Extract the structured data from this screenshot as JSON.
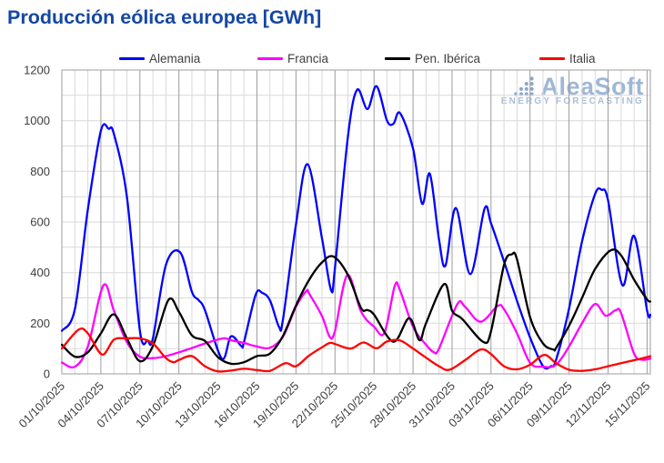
{
  "title": "Producción eólica europea [GWh]",
  "watermark": {
    "brand": "AleaSoft",
    "tagline": "ENERGY FORECASTING"
  },
  "colors": {
    "title": "#1547A4",
    "grid_minor": "#D9D9D9",
    "grid_major": "#9C9C9C",
    "border": "#ADADAD",
    "axis_text": "#3D3D3D",
    "watermark": "#9FB7D7"
  },
  "chart_data": {
    "type": "line",
    "title": "Producción eólica europea [GWh]",
    "xlabel": "",
    "ylabel": "",
    "ylim": [
      0,
      1200
    ],
    "y_ticks": [
      0,
      200,
      400,
      600,
      800,
      1000,
      1200
    ],
    "y_gridline_step": 100,
    "grid": true,
    "legend_position": "top",
    "x_tick_interval_days": 3,
    "x_total_days": 45.25,
    "x_tick_labels": [
      "01/10/2025",
      "04/10/2025",
      "07/10/2025",
      "10/10/2025",
      "13/10/2025",
      "16/10/2025",
      "19/10/2025",
      "22/10/2025",
      "25/10/2025",
      "28/10/2025",
      "31/10/2025",
      "03/11/2025",
      "06/11/2025",
      "09/11/2025",
      "12/11/2025",
      "15/11/2025"
    ],
    "series": [
      {
        "name": "Alemania",
        "color": "#0000FF",
        "x": [
          0,
          1,
          2,
          3,
          3.6,
          4,
          5,
          6,
          6.6,
          7,
          8,
          9.1,
          10,
          10.5,
          11,
          12.3,
          13,
          13.8,
          14,
          14.9,
          15.4,
          16,
          16.7,
          17,
          18,
          18.9,
          20,
          20.7,
          21,
          22,
          22.7,
          23.5,
          24.2,
          25,
          25.5,
          26,
          27,
          27.7,
          28.3,
          29,
          29.5,
          30.3,
          31.4,
          32.5,
          33,
          34,
          35,
          36,
          37,
          37.6,
          38,
          39,
          40,
          41,
          41.5,
          42,
          43.1,
          44,
          45,
          45.25
        ],
        "values": [
          170,
          255,
          650,
          960,
          968,
          948,
          700,
          170,
          132,
          140,
          430,
          480,
          324,
          292,
          252,
          60,
          148,
          110,
          125,
          312,
          320,
          290,
          185,
          215,
          590,
          828,
          535,
          330,
          420,
          940,
          1122,
          1046,
          1136,
          1000,
          988,
          1030,
          890,
          672,
          790,
          530,
          428,
          655,
          394,
          652,
          595,
          444,
          288,
          144,
          30,
          30,
          55,
          258,
          523,
          710,
          727,
          685,
          350,
          545,
          250,
          233
        ]
      },
      {
        "name": "Francia",
        "color": "#FF00FF",
        "x": [
          0,
          1,
          2,
          3.2,
          4,
          5,
          6,
          7,
          8,
          9,
          10,
          11,
          12.4,
          13,
          14,
          15,
          16,
          17,
          18,
          18.8,
          19,
          20,
          20.6,
          21,
          21.95,
          23,
          24,
          24.8,
          25.6,
          26,
          27,
          28,
          28.6,
          29,
          30.4,
          31,
          32.2,
          33.5,
          34,
          35,
          36,
          37,
          38,
          39,
          40,
          41,
          41.8,
          42.6,
          43,
          44,
          44.6,
          45.25
        ],
        "values": [
          45,
          28,
          108,
          350,
          250,
          125,
          68,
          62,
          70,
          85,
          102,
          120,
          140,
          133,
          122,
          108,
          103,
          147,
          265,
          327,
          318,
          228,
          146,
          170,
          390,
          246,
          186,
          162,
          348,
          330,
          186,
          115,
          86,
          100,
          275,
          265,
          206,
          268,
          255,
          160,
          44,
          28,
          36,
          108,
          200,
          276,
          230,
          252,
          240,
          80,
          56,
          60
        ]
      },
      {
        "name": "Pen. Ibérica",
        "color": "#000000",
        "x": [
          0,
          1,
          2,
          3,
          4,
          5,
          6,
          7,
          8.2,
          9,
          10,
          11,
          12,
          13,
          14,
          15,
          16,
          17,
          18,
          19,
          20,
          20.9,
          22,
          23,
          23.5,
          24,
          25.5,
          26.7,
          27.5,
          28,
          29.4,
          30,
          30.8,
          32.4,
          33,
          34,
          34.6,
          35,
          36,
          37,
          37.8,
          38,
          39,
          40,
          41,
          42.2,
          43,
          44,
          45,
          45.25
        ],
        "values": [
          115,
          68,
          85,
          160,
          235,
          140,
          50,
          110,
          292,
          245,
          152,
          130,
          66,
          40,
          46,
          70,
          80,
          150,
          270,
          370,
          440,
          463,
          390,
          260,
          252,
          234,
          127,
          220,
          133,
          200,
          355,
          250,
          216,
          126,
          168,
          430,
          472,
          452,
          225,
          120,
          96,
          102,
          190,
          300,
          414,
          488,
          468,
          372,
          294,
          286
        ]
      },
      {
        "name": "Italia",
        "color": "#FF0000",
        "x": [
          0,
          1.3,
          2,
          3.1,
          4,
          5,
          6,
          7,
          8,
          8.6,
          9,
          10,
          11,
          12,
          13,
          14,
          15,
          16,
          17.2,
          18,
          19,
          20,
          20.6,
          21,
          22.2,
          23.2,
          24.2,
          25,
          26,
          27,
          28,
          29,
          29.8,
          31,
          32.2,
          33,
          34,
          35,
          36,
          37.1,
          38,
          39,
          40,
          41,
          42,
          43,
          44,
          45,
          45.25
        ],
        "values": [
          100,
          175,
          160,
          76,
          135,
          140,
          140,
          120,
          62,
          46,
          55,
          70,
          30,
          10,
          13,
          20,
          15,
          12,
          42,
          30,
          72,
          105,
          122,
          118,
          100,
          124,
          101,
          128,
          132,
          100,
          64,
          30,
          16,
          54,
          96,
          78,
          30,
          18,
          36,
          75,
          42,
          16,
          12,
          18,
          30,
          42,
          54,
          66,
          70
        ]
      }
    ]
  }
}
